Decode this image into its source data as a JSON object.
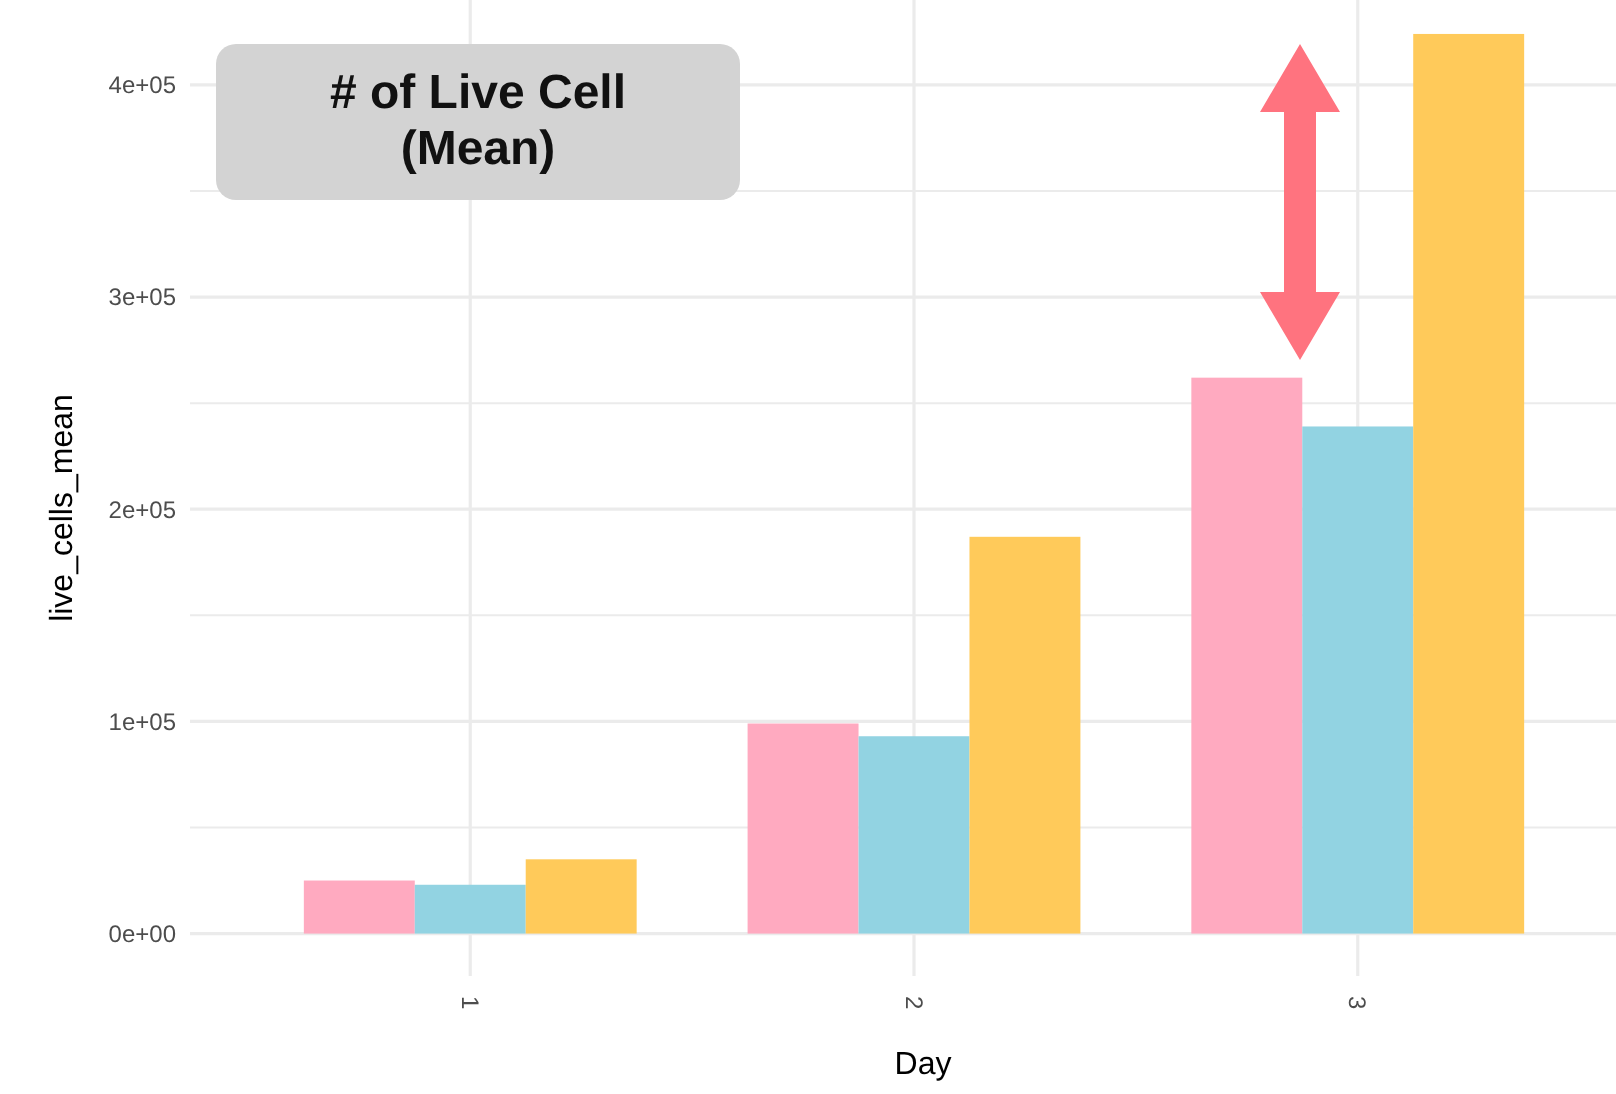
{
  "chart_data": {
    "type": "bar",
    "title": "# of Live Cell (Mean)",
    "xlabel": "Day",
    "ylabel": "live_cells_mean",
    "categories": [
      "1",
      "2",
      "3"
    ],
    "series": [
      {
        "color": "#ffaac0",
        "values": [
          25000,
          99000,
          262000
        ]
      },
      {
        "color": "#92d3e2",
        "values": [
          23000,
          93000,
          239000
        ]
      },
      {
        "color": "#ffca5a",
        "values": [
          35000,
          187000,
          424000
        ]
      }
    ],
    "ylim": [
      -20000,
      440000
    ],
    "yticks": [
      {
        "value": 0,
        "label": "0e+00"
      },
      {
        "value": 50000,
        "label": null
      },
      {
        "value": 100000,
        "label": "1e+05"
      },
      {
        "value": 150000,
        "label": null
      },
      {
        "value": 200000,
        "label": "2e+05"
      },
      {
        "value": 250000,
        "label": null
      },
      {
        "value": 300000,
        "label": "3e+05"
      },
      {
        "value": 350000,
        "label": null
      },
      {
        "value": 400000,
        "label": "4e+05"
      }
    ],
    "grid": true
  }
}
